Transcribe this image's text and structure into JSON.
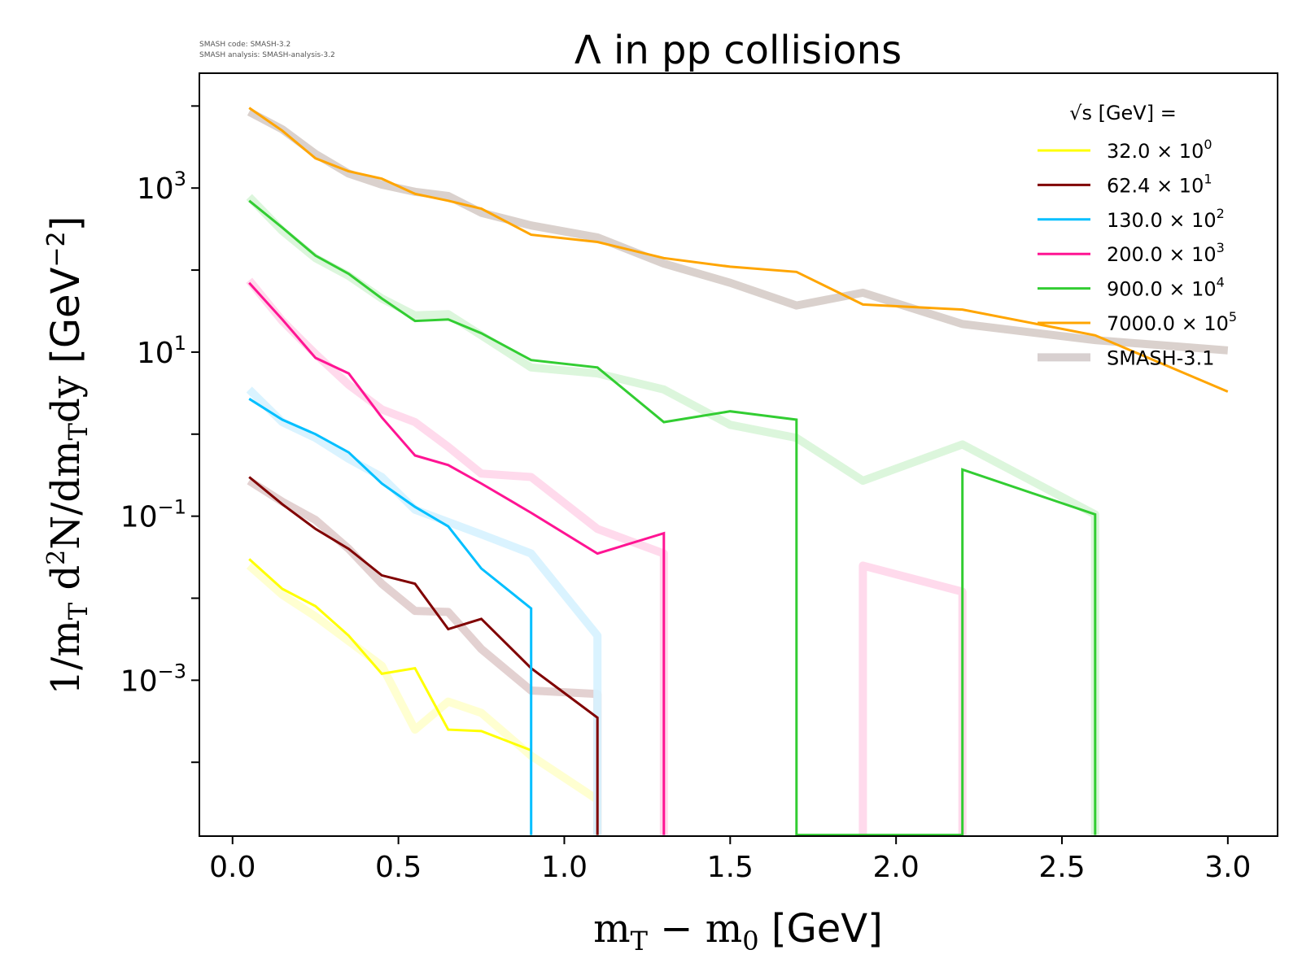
{
  "meta": {
    "code_line": "SMASH code:      SMASH-3.2",
    "analysis_line": "SMASH analysis: SMASH-analysis-3.2"
  },
  "chart_data": {
    "type": "line",
    "title": "Λ in pp collisions",
    "xlabel": "m_T − m_0 [GeV]",
    "ylabel": "1/m_T d²N/dm_T dy [GeV⁻²]",
    "xlim": [
      -0.1,
      3.15
    ],
    "ylim_log10": [
      -4.9,
      4.4
    ],
    "y_scale": "log",
    "grid": false,
    "legend_position": "top-right",
    "legend_title": "√s  [GeV] =",
    "x_ticks": [
      0.0,
      0.5,
      1.0,
      1.5,
      2.0,
      2.5,
      3.0
    ],
    "x_tick_labels": [
      "0.0",
      "0.5",
      "1.0",
      "1.5",
      "2.0",
      "2.5",
      "3.0"
    ],
    "y_ticks": [
      {
        "base": "10",
        "exp": "3",
        "value": 1000
      },
      {
        "base": "10",
        "exp": "1",
        "value": 10
      },
      {
        "base": "10",
        "exp": "−1",
        "value": 0.1
      },
      {
        "base": "10",
        "exp": "−3",
        "value": 0.001
      }
    ],
    "series": [
      {
        "name": "32.0 × 10⁰",
        "base": "32.0 × 10",
        "exp": "0",
        "color": "#ffff00",
        "x": [
          0.05,
          0.15,
          0.25,
          0.35,
          0.45,
          0.55,
          0.65,
          0.75,
          0.9
        ],
        "y": [
          0.03,
          0.013,
          0.008,
          0.0035,
          0.0012,
          0.0014,
          0.00025,
          0.00024,
          0.00014
        ]
      },
      {
        "name": "62.4 × 10¹",
        "base": "62.4 × 10",
        "exp": "1",
        "color": "#800000",
        "x": [
          0.05,
          0.15,
          0.25,
          0.35,
          0.45,
          0.55,
          0.65,
          0.75,
          0.9,
          1.1,
          1.1
        ],
        "y": [
          0.3,
          0.14,
          0.07,
          0.04,
          0.019,
          0.015,
          0.0042,
          0.0056,
          0.0014,
          0.00035,
          1.3e-05
        ]
      },
      {
        "name": "130.0 × 10²",
        "base": "130.0 × 10",
        "exp": "2",
        "color": "#00bfff",
        "x": [
          0.05,
          0.15,
          0.25,
          0.35,
          0.45,
          0.55,
          0.65,
          0.75,
          0.9,
          0.9
        ],
        "y": [
          2.7,
          1.5,
          1.0,
          0.6,
          0.25,
          0.13,
          0.075,
          0.023,
          0.0075,
          1.3e-05
        ]
      },
      {
        "name": "200.0 × 10³",
        "base": "200.0 × 10",
        "exp": "3",
        "color": "#ff1493",
        "x": [
          0.05,
          0.15,
          0.25,
          0.35,
          0.45,
          0.55,
          0.65,
          0.75,
          0.9,
          1.1,
          1.3,
          1.3
        ],
        "y": [
          70,
          25,
          8.5,
          5.5,
          1.6,
          0.55,
          0.42,
          0.25,
          0.11,
          0.035,
          0.062,
          1.3e-05
        ]
      },
      {
        "name": "900.0 × 10⁴",
        "base": "900.0 × 10",
        "exp": "4",
        "color": "#32cd32",
        "x": [
          0.05,
          0.15,
          0.25,
          0.35,
          0.45,
          0.55,
          0.65,
          0.75,
          0.9,
          1.1,
          1.3,
          1.5,
          1.7,
          1.7,
          2.2,
          2.2,
          2.6,
          2.6
        ],
        "y": [
          700,
          330,
          150,
          90,
          45,
          24,
          25,
          17,
          8,
          6.5,
          1.4,
          1.9,
          1.5,
          1.3e-05,
          1.3e-05,
          0.37,
          0.105,
          1.3e-05
        ]
      },
      {
        "name": "7000.0 × 10⁵",
        "base": "7000.0 × 10",
        "exp": "5",
        "color": "#ffa500",
        "x": [
          0.05,
          0.15,
          0.25,
          0.35,
          0.45,
          0.55,
          0.65,
          0.75,
          0.9,
          1.1,
          1.3,
          1.5,
          1.7,
          1.9,
          2.2,
          2.6,
          3.0
        ],
        "y": [
          9500,
          5000,
          2300,
          1600,
          1300,
          850,
          700,
          560,
          270,
          220,
          140,
          110,
          95,
          38,
          33,
          16,
          3.3
        ]
      }
    ],
    "reference_series_name": "SMASH-3.1",
    "reference_series_color": "#d8d0d0",
    "reference_series": [
      {
        "color": "#ffffcc",
        "x": [
          0.05,
          0.15,
          0.25,
          0.35,
          0.45,
          0.55,
          0.65,
          0.75,
          0.9,
          1.1,
          1.1
        ],
        "y": [
          0.025,
          0.011,
          0.006,
          0.003,
          0.0015,
          0.00025,
          0.00055,
          0.0004,
          0.00012,
          3.5e-05,
          1.3e-05
        ]
      },
      {
        "color": "#e0cccc",
        "x": [
          0.05,
          0.15,
          0.25,
          0.35,
          0.45,
          0.55,
          0.65,
          0.75,
          0.9,
          1.1,
          1.1
        ],
        "y": [
          0.27,
          0.15,
          0.09,
          0.04,
          0.015,
          0.007,
          0.0068,
          0.0024,
          0.00075,
          0.00068,
          1.3e-05
        ]
      },
      {
        "color": "#d6f2ff",
        "x": [
          0.05,
          0.15,
          0.25,
          0.35,
          0.45,
          0.55,
          0.65,
          0.75,
          0.9,
          1.1,
          1.1
        ],
        "y": [
          3.5,
          1.4,
          0.9,
          0.5,
          0.3,
          0.12,
          0.085,
          0.06,
          0.035,
          0.0035,
          1.3e-05
        ]
      },
      {
        "color": "#ffd6ea",
        "x": [
          0.05,
          0.15,
          0.25,
          0.35,
          0.45,
          0.55,
          0.65,
          0.75,
          0.9,
          1.1,
          1.3,
          1.3
        ],
        "y": [
          75,
          24,
          9.5,
          4,
          2,
          1.4,
          0.7,
          0.33,
          0.3,
          0.07,
          0.035,
          1.3e-05
        ],
        "x2": [
          1.9,
          1.9,
          2.2,
          2.2
        ],
        "y2": [
          1.3e-05,
          0.025,
          0.012,
          1.3e-05
        ]
      },
      {
        "color": "#d8f5d8",
        "x": [
          0.05,
          0.15,
          0.25,
          0.35,
          0.45,
          0.55,
          0.65,
          0.75,
          0.9,
          1.1,
          1.3,
          1.5,
          1.7,
          1.9,
          2.2,
          2.6,
          2.6
        ],
        "y": [
          780,
          300,
          140,
          85,
          45,
          28,
          29,
          16,
          6.5,
          5.5,
          3.5,
          1.3,
          0.9,
          0.27,
          0.75,
          0.105,
          1.3e-05
        ]
      },
      {
        "color": "#d6ccc8",
        "x": [
          0.05,
          0.15,
          0.25,
          0.35,
          0.45,
          0.55,
          0.65,
          0.75,
          0.9,
          1.1,
          1.3,
          1.5,
          1.7,
          1.9,
          2.2,
          2.6,
          3.0
        ],
        "y": [
          8500,
          5200,
          2600,
          1500,
          1100,
          900,
          800,
          500,
          350,
          250,
          120,
          70,
          37,
          53,
          22,
          14,
          10.5
        ]
      }
    ]
  }
}
